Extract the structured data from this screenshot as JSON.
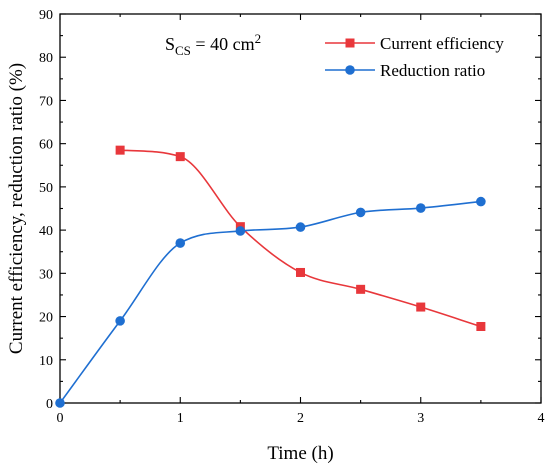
{
  "chart_data": {
    "type": "line",
    "xlabel": "Time (h)",
    "ylabel": "Current efficiency, reduction ratio (%)",
    "xlim": [
      0,
      4
    ],
    "ylim": [
      0,
      90
    ],
    "xticks": [
      "0",
      "1",
      "2",
      "3",
      "4"
    ],
    "yticks": [
      "0",
      "10",
      "20",
      "30",
      "40",
      "50",
      "60",
      "70",
      "80",
      "90"
    ],
    "grid": false,
    "legend_position": "top-right",
    "annotation": {
      "prefix": "S",
      "subscript": "CS",
      "middle": " = 40 cm",
      "superscript": "2"
    },
    "series": [
      {
        "name": "Current efficiency",
        "color": "#e8373b",
        "marker": "square",
        "x": [
          0.5,
          1,
          1.5,
          2,
          2.5,
          3,
          3.5
        ],
        "y": [
          58.5,
          57,
          40.8,
          30.2,
          26.3,
          22.2,
          17.7
        ]
      },
      {
        "name": "Reduction ratio",
        "color": "#1f6fd1",
        "marker": "circle",
        "x": [
          0,
          0.5,
          1,
          1.5,
          2,
          2.5,
          3,
          3.5
        ],
        "y": [
          0,
          19,
          37,
          39.8,
          40.7,
          44.1,
          45.1,
          46.6
        ]
      }
    ]
  }
}
